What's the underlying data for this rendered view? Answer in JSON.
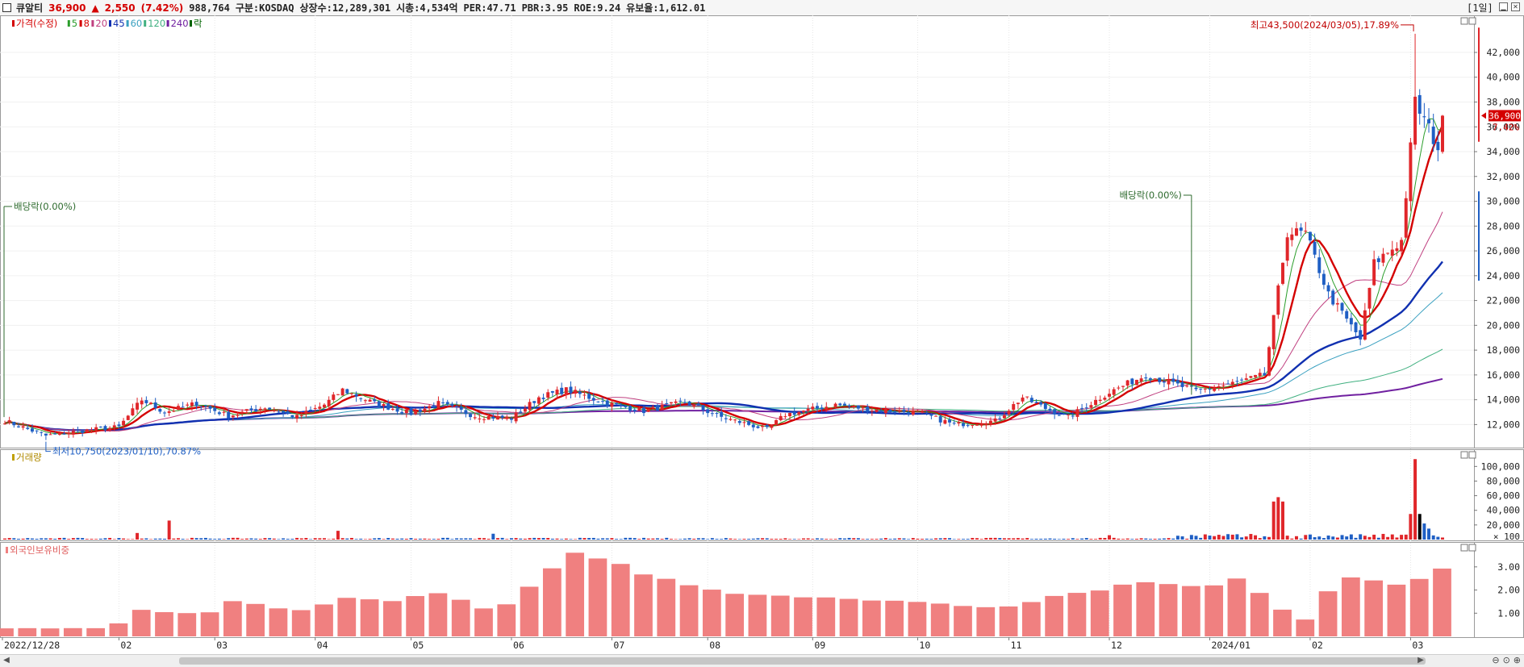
{
  "header": {
    "stock_name": "큐알티",
    "price": "36,900",
    "change_arrow": "▲",
    "change": "2,550",
    "change_pct": "(7.42%)",
    "volume": "988,764",
    "market": "구분:KOSDAQ",
    "listed_shares": "상장수:12,289,301",
    "market_cap": "시총:4,534억",
    "per": "PER:47.71",
    "pbr": "PBR:3.95",
    "roe": "ROE:9.24",
    "float_ratio": "유보율:1,612.01",
    "period": "[1일]"
  },
  "price_legend": [
    {
      "label": "가격(수정)",
      "color": "#d40000"
    },
    {
      "label": "5",
      "color": "#2a9d2a"
    },
    {
      "label": "8",
      "color": "#d40000"
    },
    {
      "label": "20",
      "color": "#c04080"
    },
    {
      "label": "45",
      "color": "#1030b0"
    },
    {
      "label": "60",
      "color": "#3aa0c0"
    },
    {
      "label": "120",
      "color": "#40b080"
    },
    {
      "label": "240",
      "color": "#7020a0"
    },
    {
      "label": "락",
      "color": "#006400"
    }
  ],
  "annotations": {
    "high": "최고43,500(2024/03/05),17.89%",
    "low": "최저10,750(2023/01/10),70.87%",
    "dividend_1": "배당락(0.00%)",
    "dividend_2": "배당락(0.00%)",
    "last_price_tag": "36,900",
    "last_pct_tag": "7.42%"
  },
  "panels": {
    "volume_title": "거래량",
    "volume_unit": "× 100",
    "foreign_title": "외국인보유비중"
  },
  "chart_data": [
    {
      "type": "candlestick",
      "title": "가격(수정)",
      "x_tick_labels": [
        "2022/12/28",
        "02",
        "03",
        "04",
        "05",
        "06",
        "07",
        "08",
        "09",
        "10",
        "11",
        "12",
        "2024/01",
        "02",
        "03"
      ],
      "y_tick_labels": [
        "12,000",
        "14,000",
        "16,000",
        "18,000",
        "20,000",
        "22,000",
        "24,000",
        "26,000",
        "28,000",
        "30,000",
        "32,000",
        "34,000",
        "36,000",
        "38,000",
        "40,000",
        "42,000"
      ],
      "ylim": [
        10400,
        44600
      ],
      "close_anchors": [
        [
          "2022-12-28",
          12300
        ],
        [
          "2023-01-10",
          11100
        ],
        [
          "2023-01-20",
          11500
        ],
        [
          "2023-02-01",
          11800
        ],
        [
          "2023-02-08",
          14000
        ],
        [
          "2023-02-15",
          13000
        ],
        [
          "2023-02-24",
          13700
        ],
        [
          "2023-03-07",
          12700
        ],
        [
          "2023-03-17",
          13400
        ],
        [
          "2023-03-28",
          12600
        ],
        [
          "2023-04-05",
          13600
        ],
        [
          "2023-04-11",
          14800
        ],
        [
          "2023-04-20",
          13700
        ],
        [
          "2023-05-02",
          12900
        ],
        [
          "2023-05-10",
          13700
        ],
        [
          "2023-05-22",
          12700
        ],
        [
          "2023-06-01",
          12500
        ],
        [
          "2023-06-09",
          14200
        ],
        [
          "2023-06-19",
          14800
        ],
        [
          "2023-06-30",
          13700
        ],
        [
          "2023-07-12",
          13100
        ],
        [
          "2023-07-25",
          13800
        ],
        [
          "2023-08-04",
          12600
        ],
        [
          "2023-08-18",
          11600
        ],
        [
          "2023-08-24",
          12800
        ],
        [
          "2023-09-08",
          13600
        ],
        [
          "2023-09-20",
          13200
        ],
        [
          "2023-10-04",
          13000
        ],
        [
          "2023-10-16",
          12000
        ],
        [
          "2023-10-27",
          12300
        ],
        [
          "2023-11-06",
          14200
        ],
        [
          "2023-11-13",
          13300
        ],
        [
          "2023-11-20",
          12600
        ],
        [
          "2023-12-01",
          14600
        ],
        [
          "2023-12-13",
          16000
        ],
        [
          "2023-12-28",
          14700
        ],
        [
          "2024-01-10",
          15400
        ],
        [
          "2024-01-18",
          16000
        ],
        [
          "2024-01-22",
          20500
        ],
        [
          "2024-01-25",
          27500
        ],
        [
          "2024-01-31",
          27400
        ],
        [
          "2024-02-07",
          22500
        ],
        [
          "2024-02-16",
          18900
        ],
        [
          "2024-02-21",
          25000
        ],
        [
          "2024-02-29",
          26800
        ],
        [
          "2024-03-05",
          38000
        ],
        [
          "2024-03-12",
          34350
        ],
        [
          "2024-03-13",
          36900
        ]
      ],
      "high": {
        "date": "2024-03-05",
        "value": 43500
      },
      "low": {
        "date": "2023-01-10",
        "value": 10750
      },
      "last_close": 36900
    },
    {
      "type": "bar",
      "title": "거래량",
      "unit": "× 100",
      "y_tick_labels": [
        "20,000",
        "40,000",
        "60,000",
        "80,000",
        "100,000"
      ],
      "ylim": [
        0,
        118000
      ],
      "spikes": [
        [
          "2023-02-07",
          9000
        ],
        [
          "2023-02-16",
          26000
        ],
        [
          "2023-04-10",
          12000
        ],
        [
          "2023-05-26",
          8000
        ],
        [
          "2023-12-01",
          6000
        ],
        [
          "2024-01-22",
          52000
        ],
        [
          "2024-01-23",
          58000
        ],
        [
          "2024-01-24",
          52000
        ],
        [
          "2024-03-04",
          35000
        ],
        [
          "2024-03-05",
          110000
        ],
        [
          "2024-03-06",
          35000
        ],
        [
          "2024-03-07",
          22000
        ],
        [
          "2024-03-08",
          15000
        ]
      ]
    },
    {
      "type": "bar",
      "title": "외국인보유비중",
      "y_tick_labels": [
        "1.00",
        "2.00",
        "3.00"
      ],
      "ylim": [
        0,
        3.9
      ],
      "anchors": [
        [
          "2022-12-28",
          0.35
        ],
        [
          "2023-01-31",
          0.35
        ],
        [
          "2023-02-06",
          1.15
        ],
        [
          "2023-02-28",
          0.95
        ],
        [
          "2023-03-08",
          1.55
        ],
        [
          "2023-03-28",
          1.05
        ],
        [
          "2023-04-12",
          1.65
        ],
        [
          "2023-04-28",
          1.45
        ],
        [
          "2023-05-08",
          2.05
        ],
        [
          "2023-05-26",
          1.05
        ],
        [
          "2023-06-01",
          1.5
        ],
        [
          "2023-06-14",
          3.0
        ],
        [
          "2023-06-22",
          3.65
        ],
        [
          "2023-07-14",
          2.6
        ],
        [
          "2023-08-10",
          1.8
        ],
        [
          "2023-09-29",
          1.5
        ],
        [
          "2023-10-27",
          1.2
        ],
        [
          "2023-11-10",
          1.6
        ],
        [
          "2023-12-12",
          2.3
        ],
        [
          "2023-12-29",
          2.1
        ],
        [
          "2024-01-10",
          2.5
        ],
        [
          "2024-01-20",
          1.6
        ],
        [
          "2024-01-30",
          0.5
        ],
        [
          "2024-02-12",
          2.6
        ],
        [
          "2024-02-29",
          2.2
        ],
        [
          "2024-03-13",
          2.9
        ]
      ]
    }
  ]
}
